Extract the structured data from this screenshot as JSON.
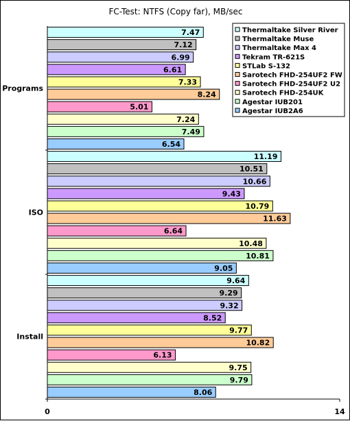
{
  "chart_data": {
    "type": "bar",
    "orientation": "horizontal",
    "title": "FC-Test: NTFS (Copy far),  MB/sec",
    "xlabel": "",
    "ylabel": "",
    "xlim": [
      0,
      14
    ],
    "x_ticks": [
      "0",
      "14"
    ],
    "grid": false,
    "legend_position": "top-right",
    "categories": [
      "Programs",
      "ISO",
      "Install"
    ],
    "series": [
      {
        "name": "Thermaltake Silver River",
        "color": "#ccffff",
        "values": [
          7.47,
          11.19,
          9.64
        ]
      },
      {
        "name": "Thermaltake Muse",
        "color": "#c0c0c0",
        "values": [
          7.12,
          10.51,
          9.29
        ]
      },
      {
        "name": "Thermaltake Max 4",
        "color": "#ccccff",
        "values": [
          6.99,
          10.66,
          9.32
        ]
      },
      {
        "name": "Tekram TR-621S",
        "color": "#cc99ff",
        "values": [
          6.61,
          9.43,
          8.52
        ]
      },
      {
        "name": "STLab S-132",
        "color": "#ffff99",
        "values": [
          7.33,
          10.79,
          9.77
        ]
      },
      {
        "name": "Sarotech FHD-254UF2 FW",
        "color": "#ffcc99",
        "values": [
          8.24,
          11.63,
          10.82
        ]
      },
      {
        "name": "Sarotech FHD-254UF2 U2",
        "color": "#ff99cc",
        "values": [
          5.01,
          6.64,
          6.13
        ]
      },
      {
        "name": "Sarotech FHD-254UK",
        "color": "#ffffcc",
        "values": [
          7.24,
          10.48,
          9.75
        ]
      },
      {
        "name": "Agestar IUB201",
        "color": "#ccffcc",
        "values": [
          7.49,
          10.81,
          9.79
        ]
      },
      {
        "name": "Agestar IUB2A6",
        "color": "#99ccff",
        "values": [
          6.54,
          9.05,
          8.06
        ]
      }
    ]
  }
}
